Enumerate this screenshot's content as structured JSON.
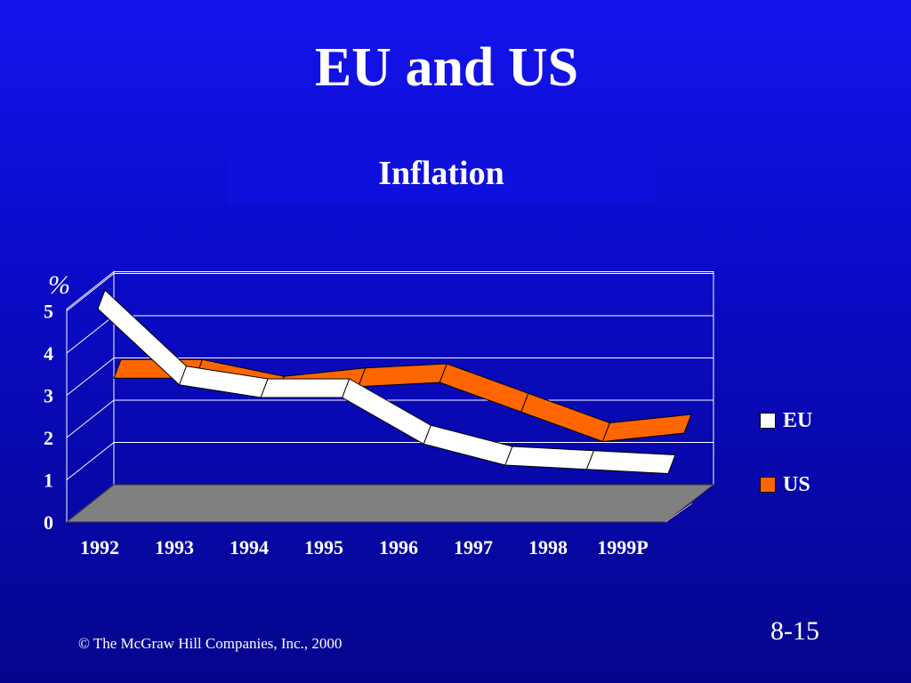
{
  "slide": {
    "title": "EU and US",
    "subtitle": "Inflation",
    "footer": "© The McGraw Hill Companies, Inc., 2000",
    "page_number": "8-15"
  },
  "chart_data": {
    "type": "line",
    "title": "Inflation",
    "ylabel": "%",
    "xlabel": "",
    "categories": [
      "1992",
      "1993",
      "1994",
      "1995",
      "1996",
      "1997",
      "1998",
      "1999P"
    ],
    "yticks": [
      "0",
      "1",
      "2",
      "3",
      "4",
      "5"
    ],
    "ylim": [
      0,
      5
    ],
    "series": [
      {
        "name": "EU",
        "values": [
          5.1,
          3.3,
          3.0,
          3.0,
          1.9,
          1.4,
          1.3,
          1.2
        ],
        "color": "#ffffff"
      },
      {
        "name": "US",
        "values": [
          3.1,
          3.1,
          2.7,
          2.9,
          3.0,
          2.3,
          1.6,
          1.8
        ],
        "color": "#ff6600"
      }
    ],
    "style": "3d-ribbon",
    "grid": true,
    "legend": "right"
  }
}
